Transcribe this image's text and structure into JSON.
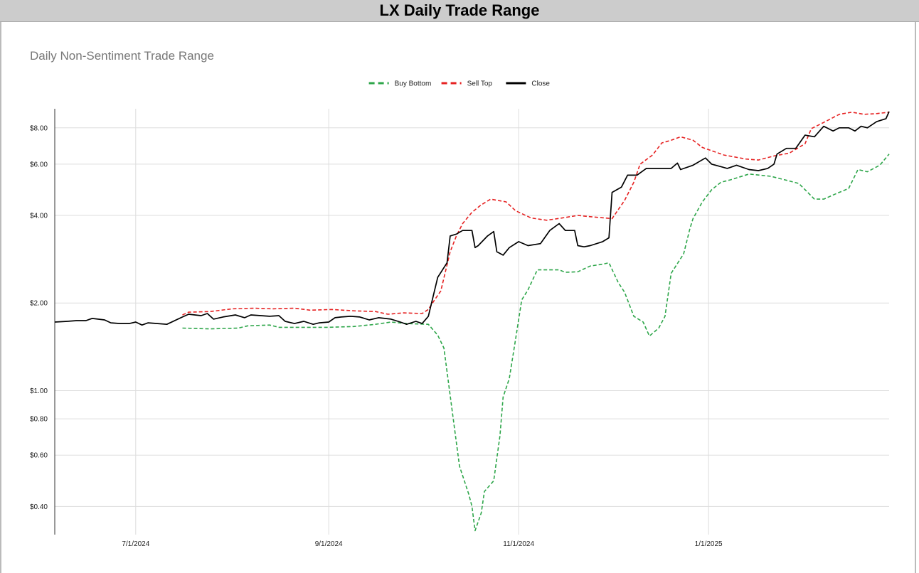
{
  "page_title": "LX Daily Trade Range",
  "chart_data": {
    "type": "line",
    "title": "",
    "subtitle": "Daily Non-Sentiment Trade Range",
    "xlabel": "",
    "ylabel": "",
    "y_scale": "log",
    "ylim": [
      0.32,
      9.3
    ],
    "y_ticks": [
      {
        "value": 0.4,
        "label": "$0.40"
      },
      {
        "value": 0.6,
        "label": "$0.60"
      },
      {
        "value": 0.8,
        "label": "$0.80"
      },
      {
        "value": 1.0,
        "label": "$1.00"
      },
      {
        "value": 2.0,
        "label": "$2.00"
      },
      {
        "value": 4.0,
        "label": "$4.00"
      },
      {
        "value": 6.0,
        "label": "$6.00"
      },
      {
        "value": 8.0,
        "label": "$8.00"
      }
    ],
    "x_range": [
      "2024-06-05",
      "2025-02-28"
    ],
    "x_ticks": [
      {
        "date": "2024-07-01",
        "label": "7/1/2024"
      },
      {
        "date": "2024-09-01",
        "label": "9/1/2024"
      },
      {
        "date": "2024-11-01",
        "label": "11/1/2024"
      },
      {
        "date": "2025-01-01",
        "label": "1/1/2025"
      }
    ],
    "grid": true,
    "legend_placement": "top-center",
    "series": [
      {
        "name": "Buy Bottom",
        "color": "#2ea64a",
        "style": "dashed",
        "points": [
          [
            "2024-07-16",
            1.64
          ],
          [
            "2024-07-25",
            1.63
          ],
          [
            "2024-08-03",
            1.64
          ],
          [
            "2024-08-06",
            1.67
          ],
          [
            "2024-08-13",
            1.68
          ],
          [
            "2024-08-16",
            1.65
          ],
          [
            "2024-08-23",
            1.65
          ],
          [
            "2024-09-01",
            1.65
          ],
          [
            "2024-09-09",
            1.66
          ],
          [
            "2024-09-16",
            1.69
          ],
          [
            "2024-09-21",
            1.72
          ],
          [
            "2024-09-26",
            1.7
          ],
          [
            "2024-10-03",
            1.69
          ],
          [
            "2024-10-06",
            1.55
          ],
          [
            "2024-10-08",
            1.4
          ],
          [
            "2024-10-11",
            0.8
          ],
          [
            "2024-10-13",
            0.55
          ],
          [
            "2024-10-16",
            0.44
          ],
          [
            "2024-10-17",
            0.4
          ],
          [
            "2024-10-18",
            0.33
          ],
          [
            "2024-10-20",
            0.38
          ],
          [
            "2024-10-21",
            0.45
          ],
          [
            "2024-10-24",
            0.49
          ],
          [
            "2024-10-26",
            0.7
          ],
          [
            "2024-10-27",
            0.95
          ],
          [
            "2024-10-29",
            1.1
          ],
          [
            "2024-10-31",
            1.5
          ],
          [
            "2024-11-02",
            2.05
          ],
          [
            "2024-11-04",
            2.22
          ],
          [
            "2024-11-07",
            2.6
          ],
          [
            "2024-11-12",
            2.6
          ],
          [
            "2024-11-14",
            2.6
          ],
          [
            "2024-11-16",
            2.55
          ],
          [
            "2024-11-20",
            2.56
          ],
          [
            "2024-11-24",
            2.68
          ],
          [
            "2024-11-28",
            2.72
          ],
          [
            "2024-11-30",
            2.75
          ],
          [
            "2024-12-03",
            2.35
          ],
          [
            "2024-12-05",
            2.18
          ],
          [
            "2024-12-08",
            1.8
          ],
          [
            "2024-12-11",
            1.72
          ],
          [
            "2024-12-13",
            1.54
          ],
          [
            "2024-12-16",
            1.64
          ],
          [
            "2024-12-18",
            1.8
          ],
          [
            "2024-12-20",
            2.53
          ],
          [
            "2024-12-24",
            2.95
          ],
          [
            "2024-12-26",
            3.6
          ],
          [
            "2024-12-27",
            3.9
          ],
          [
            "2024-12-30",
            4.45
          ],
          [
            "2025-01-02",
            4.9
          ],
          [
            "2025-01-05",
            5.2
          ],
          [
            "2025-01-08",
            5.3
          ],
          [
            "2025-01-14",
            5.55
          ],
          [
            "2025-01-21",
            5.45
          ],
          [
            "2025-01-27",
            5.25
          ],
          [
            "2025-01-30",
            5.15
          ],
          [
            "2025-02-04",
            4.55
          ],
          [
            "2025-02-07",
            4.55
          ],
          [
            "2025-02-11",
            4.75
          ],
          [
            "2025-02-15",
            4.95
          ],
          [
            "2025-02-18",
            5.75
          ],
          [
            "2025-02-21",
            5.65
          ],
          [
            "2025-02-25",
            5.95
          ],
          [
            "2025-02-28",
            6.5
          ]
        ]
      },
      {
        "name": "Sell Top",
        "color": "#e62222",
        "style": "dashed",
        "points": [
          [
            "2024-07-16",
            1.82
          ],
          [
            "2024-07-18",
            1.86
          ],
          [
            "2024-07-25",
            1.87
          ],
          [
            "2024-08-01",
            1.91
          ],
          [
            "2024-08-08",
            1.92
          ],
          [
            "2024-08-14",
            1.91
          ],
          [
            "2024-08-21",
            1.92
          ],
          [
            "2024-08-26",
            1.89
          ],
          [
            "2024-09-02",
            1.9
          ],
          [
            "2024-09-09",
            1.88
          ],
          [
            "2024-09-16",
            1.87
          ],
          [
            "2024-09-20",
            1.83
          ],
          [
            "2024-09-25",
            1.85
          ],
          [
            "2024-10-01",
            1.84
          ],
          [
            "2024-10-03",
            1.9
          ],
          [
            "2024-10-05",
            2.05
          ],
          [
            "2024-10-07",
            2.2
          ],
          [
            "2024-10-10",
            3.0
          ],
          [
            "2024-10-12",
            3.4
          ],
          [
            "2024-10-14",
            3.75
          ],
          [
            "2024-10-17",
            4.1
          ],
          [
            "2024-10-20",
            4.35
          ],
          [
            "2024-10-23",
            4.55
          ],
          [
            "2024-10-28",
            4.45
          ],
          [
            "2024-10-31",
            4.15
          ],
          [
            "2024-11-05",
            3.92
          ],
          [
            "2024-11-10",
            3.85
          ],
          [
            "2024-11-15",
            3.92
          ],
          [
            "2024-11-20",
            4.0
          ],
          [
            "2024-11-24",
            3.96
          ],
          [
            "2024-12-01",
            3.9
          ],
          [
            "2024-12-05",
            4.5
          ],
          [
            "2024-12-08",
            5.2
          ],
          [
            "2024-12-10",
            6.0
          ],
          [
            "2024-12-14",
            6.45
          ],
          [
            "2024-12-17",
            7.1
          ],
          [
            "2024-12-20",
            7.25
          ],
          [
            "2024-12-23",
            7.45
          ],
          [
            "2024-12-27",
            7.25
          ],
          [
            "2024-12-30",
            6.85
          ],
          [
            "2025-01-06",
            6.45
          ],
          [
            "2025-01-13",
            6.25
          ],
          [
            "2025-01-17",
            6.2
          ],
          [
            "2025-01-22",
            6.4
          ],
          [
            "2025-01-27",
            6.55
          ],
          [
            "2025-02-01",
            7.05
          ],
          [
            "2025-02-03",
            7.95
          ],
          [
            "2025-02-07",
            8.35
          ],
          [
            "2025-02-12",
            8.9
          ],
          [
            "2025-02-16",
            9.05
          ],
          [
            "2025-02-20",
            8.9
          ],
          [
            "2025-02-24",
            8.95
          ],
          [
            "2025-02-28",
            9.05
          ]
        ]
      },
      {
        "name": "Close",
        "color": "#000000",
        "style": "solid",
        "points": [
          [
            "2024-06-05",
            1.72
          ],
          [
            "2024-06-09",
            1.73
          ],
          [
            "2024-06-12",
            1.74
          ],
          [
            "2024-06-15",
            1.74
          ],
          [
            "2024-06-17",
            1.77
          ],
          [
            "2024-06-21",
            1.75
          ],
          [
            "2024-06-23",
            1.71
          ],
          [
            "2024-06-26",
            1.7
          ],
          [
            "2024-06-29",
            1.7
          ],
          [
            "2024-07-01",
            1.72
          ],
          [
            "2024-07-03",
            1.68
          ],
          [
            "2024-07-05",
            1.71
          ],
          [
            "2024-07-08",
            1.7
          ],
          [
            "2024-07-11",
            1.69
          ],
          [
            "2024-07-16",
            1.79
          ],
          [
            "2024-07-18",
            1.83
          ],
          [
            "2024-07-22",
            1.81
          ],
          [
            "2024-07-24",
            1.84
          ],
          [
            "2024-07-26",
            1.76
          ],
          [
            "2024-07-29",
            1.79
          ],
          [
            "2024-08-02",
            1.82
          ],
          [
            "2024-08-05",
            1.78
          ],
          [
            "2024-08-07",
            1.82
          ],
          [
            "2024-08-13",
            1.8
          ],
          [
            "2024-08-16",
            1.81
          ],
          [
            "2024-08-18",
            1.73
          ],
          [
            "2024-08-21",
            1.7
          ],
          [
            "2024-08-24",
            1.73
          ],
          [
            "2024-08-27",
            1.69
          ],
          [
            "2024-08-29",
            1.71
          ],
          [
            "2024-09-01",
            1.72
          ],
          [
            "2024-09-03",
            1.78
          ],
          [
            "2024-09-05",
            1.79
          ],
          [
            "2024-09-08",
            1.8
          ],
          [
            "2024-09-11",
            1.79
          ],
          [
            "2024-09-14",
            1.75
          ],
          [
            "2024-09-17",
            1.78
          ],
          [
            "2024-09-21",
            1.76
          ],
          [
            "2024-09-24",
            1.72
          ],
          [
            "2024-09-26",
            1.69
          ],
          [
            "2024-09-29",
            1.73
          ],
          [
            "2024-10-01",
            1.7
          ],
          [
            "2024-10-03",
            1.8
          ],
          [
            "2024-10-06",
            2.45
          ],
          [
            "2024-10-09",
            2.75
          ],
          [
            "2024-10-10",
            3.4
          ],
          [
            "2024-10-12",
            3.45
          ],
          [
            "2024-10-14",
            3.55
          ],
          [
            "2024-10-17",
            3.55
          ],
          [
            "2024-10-18",
            3.1
          ],
          [
            "2024-10-19",
            3.15
          ],
          [
            "2024-10-22",
            3.4
          ],
          [
            "2024-10-24",
            3.52
          ],
          [
            "2024-10-25",
            3.0
          ],
          [
            "2024-10-27",
            2.92
          ],
          [
            "2024-10-29",
            3.1
          ],
          [
            "2024-11-01",
            3.25
          ],
          [
            "2024-11-04",
            3.15
          ],
          [
            "2024-11-08",
            3.2
          ],
          [
            "2024-11-11",
            3.55
          ],
          [
            "2024-11-14",
            3.75
          ],
          [
            "2024-11-16",
            3.55
          ],
          [
            "2024-11-19",
            3.55
          ],
          [
            "2024-11-20",
            3.15
          ],
          [
            "2024-11-22",
            3.12
          ],
          [
            "2024-11-24",
            3.15
          ],
          [
            "2024-11-28",
            3.25
          ],
          [
            "2024-11-30",
            3.35
          ],
          [
            "2024-12-01",
            4.8
          ],
          [
            "2024-12-04",
            5.0
          ],
          [
            "2024-12-06",
            5.5
          ],
          [
            "2024-12-09",
            5.5
          ],
          [
            "2024-12-12",
            5.8
          ],
          [
            "2024-12-16",
            5.8
          ],
          [
            "2024-12-20",
            5.8
          ],
          [
            "2024-12-22",
            6.05
          ],
          [
            "2024-12-23",
            5.75
          ],
          [
            "2024-12-27",
            5.95
          ],
          [
            "2024-12-31",
            6.3
          ],
          [
            "2025-01-02",
            6.0
          ],
          [
            "2025-01-07",
            5.8
          ],
          [
            "2025-01-10",
            5.95
          ],
          [
            "2025-01-14",
            5.75
          ],
          [
            "2025-01-17",
            5.7
          ],
          [
            "2025-01-20",
            5.8
          ],
          [
            "2025-01-22",
            6.0
          ],
          [
            "2025-01-23",
            6.5
          ],
          [
            "2025-01-26",
            6.8
          ],
          [
            "2025-01-29",
            6.8
          ],
          [
            "2025-02-01",
            7.55
          ],
          [
            "2025-02-04",
            7.45
          ],
          [
            "2025-02-07",
            8.1
          ],
          [
            "2025-02-10",
            7.8
          ],
          [
            "2025-02-12",
            8.0
          ],
          [
            "2025-02-15",
            8.0
          ],
          [
            "2025-02-17",
            7.8
          ],
          [
            "2025-02-19",
            8.1
          ],
          [
            "2025-02-21",
            8.0
          ],
          [
            "2025-02-24",
            8.4
          ],
          [
            "2025-02-27",
            8.6
          ],
          [
            "2025-02-28",
            9.1
          ]
        ]
      }
    ]
  }
}
